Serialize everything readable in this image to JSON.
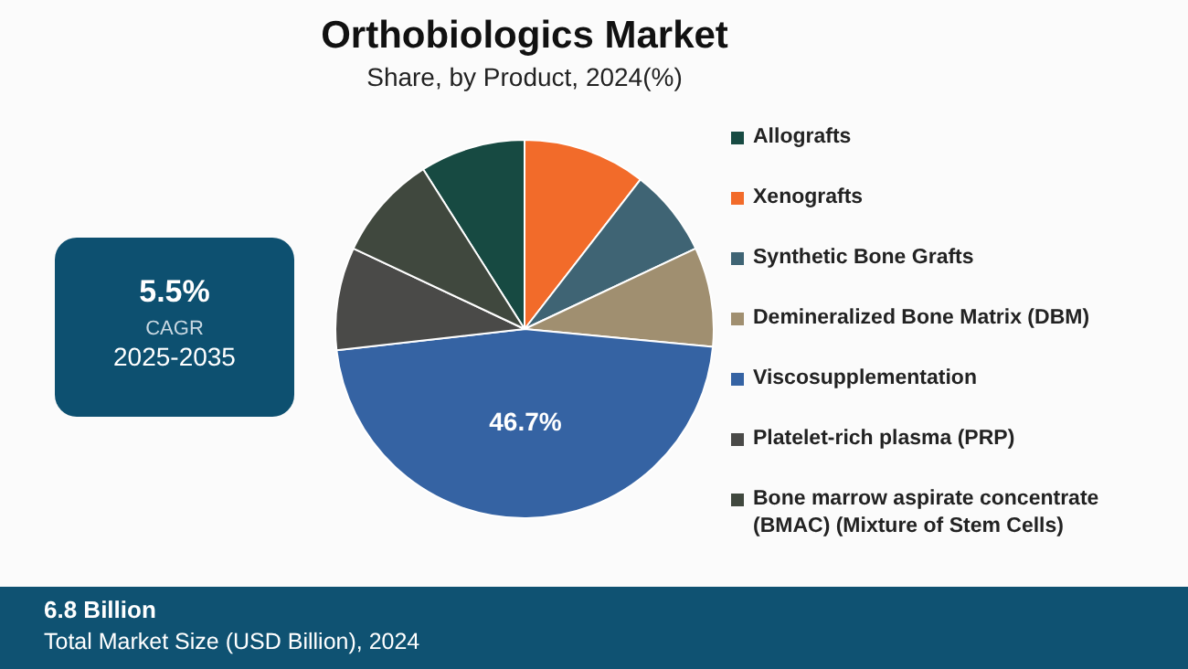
{
  "chart_data": {
    "type": "pie",
    "title": "Orthobiologics Market",
    "subtitle": "Share, by Product, 2024(%)",
    "categories": [
      "Allografts",
      "Xenografts",
      "Synthetic Bone Grafts",
      "Demineralized Bone Matrix (DBM)",
      "Viscosupplementation",
      "Platelet-rich plasma (PRP)",
      "Bone marrow aspirate concentrate (BMAC) (Mixture of Stem Cells)"
    ],
    "values": [
      9.0,
      10.5,
      7.5,
      8.5,
      46.7,
      8.8,
      9.0
    ],
    "colors": [
      "#174a42",
      "#f26b2a",
      "#3f6474",
      "#a08f70",
      "#3563a3",
      "#4a4a48",
      "#40483e"
    ],
    "value_labels": [
      null,
      null,
      null,
      null,
      "46.7%",
      null,
      null
    ],
    "legend": "right",
    "annotations": [
      "5.5%",
      "CAGR",
      "2025-2035",
      "6.8 Billion",
      "Total Market Size (USD Billion), 2024"
    ]
  }
}
